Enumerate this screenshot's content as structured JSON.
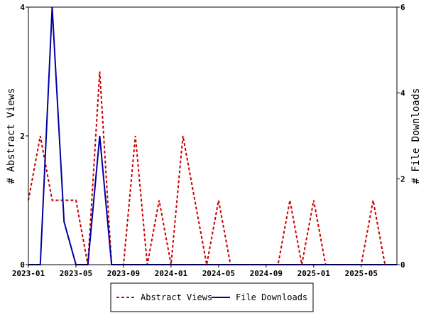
{
  "chart_data": {
    "type": "line",
    "x_dates": [
      "2023-01",
      "2023-02",
      "2023-03",
      "2023-04",
      "2023-05",
      "2023-06",
      "2023-07",
      "2023-08",
      "2023-09",
      "2023-10",
      "2023-11",
      "2023-12",
      "2024-01",
      "2024-02",
      "2024-03",
      "2024-04",
      "2024-05",
      "2024-06",
      "2024-07",
      "2024-08",
      "2024-09",
      "2024-10",
      "2024-11",
      "2024-12",
      "2025-01",
      "2025-02",
      "2025-03",
      "2025-04",
      "2025-05",
      "2025-06",
      "2025-07",
      "2025-08"
    ],
    "x_ticks": [
      "2023-01",
      "2023-05",
      "2023-09",
      "2024-01",
      "2024-05",
      "2024-09",
      "2025-01",
      "2025-05"
    ],
    "xlim": [
      "2023-01",
      "2025-08"
    ],
    "ylabel_left": "# Abstract Views",
    "ylabel_right": "# File Downloads",
    "ylim_left": [
      0,
      4
    ],
    "ylim_right": [
      0,
      6
    ],
    "yticks_left": [
      "0",
      "2",
      "4"
    ],
    "yticks_right": [
      "0",
      "2",
      "4",
      "6"
    ],
    "grid": false,
    "legend_position": "bottom-center",
    "series": [
      {
        "name": "Abstract Views",
        "axis": "left",
        "color": "#cc0000",
        "dash": "dashed",
        "values": [
          1,
          2,
          1,
          1,
          1,
          0,
          3,
          0,
          0,
          2,
          0,
          1,
          0,
          2,
          1,
          0,
          1,
          0,
          0,
          0,
          0,
          0,
          1,
          0,
          1,
          0,
          0,
          0,
          0,
          1,
          0,
          0
        ]
      },
      {
        "name": "File Downloads",
        "axis": "right",
        "color": "#00009e",
        "dash": "solid",
        "values": [
          0,
          0,
          6,
          1,
          0,
          0,
          3,
          0,
          0,
          0,
          0,
          0,
          0,
          0,
          0,
          0,
          0,
          0,
          0,
          0,
          0,
          0,
          0,
          0,
          0,
          0,
          0,
          0,
          0,
          0,
          0,
          0
        ]
      }
    ]
  }
}
